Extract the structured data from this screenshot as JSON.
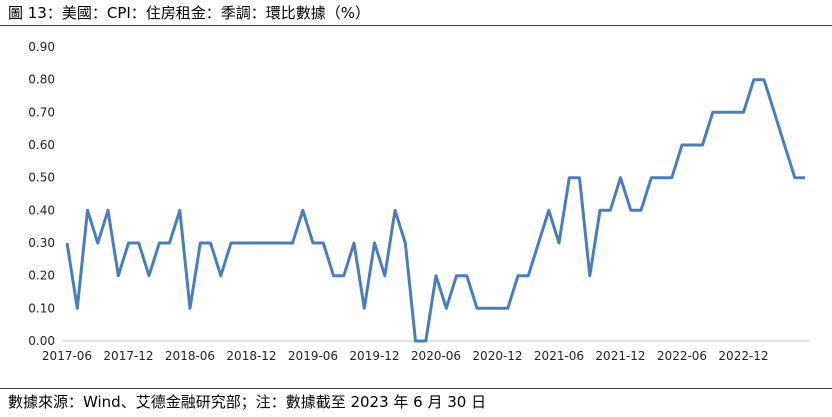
{
  "header": {
    "title": "圖 13：美國：CPI：住房租金：季調：環比數據（%）"
  },
  "footer": {
    "source": "數據來源：Wind、艾德金融研究部；注：數據截至 2023 年 6 月 30 日"
  },
  "chart_data": {
    "type": "line",
    "title": "圖 13：美國：CPI：住房租金：季調：環比數據（%）",
    "xlabel": "",
    "ylabel": "",
    "ylim": [
      0,
      0.9
    ],
    "yticks": [
      "0.00",
      "0.10",
      "0.20",
      "0.30",
      "0.40",
      "0.50",
      "0.60",
      "0.70",
      "0.80",
      "0.90"
    ],
    "x": [
      "2017-06",
      "2017-07",
      "2017-08",
      "2017-09",
      "2017-10",
      "2017-11",
      "2017-12",
      "2018-01",
      "2018-02",
      "2018-03",
      "2018-04",
      "2018-05",
      "2018-06",
      "2018-07",
      "2018-08",
      "2018-09",
      "2018-10",
      "2018-11",
      "2018-12",
      "2019-01",
      "2019-02",
      "2019-03",
      "2019-04",
      "2019-05",
      "2019-06",
      "2019-07",
      "2019-08",
      "2019-09",
      "2019-10",
      "2019-11",
      "2019-12",
      "2020-01",
      "2020-02",
      "2020-03",
      "2020-04",
      "2020-05",
      "2020-06",
      "2020-07",
      "2020-08",
      "2020-09",
      "2020-10",
      "2020-11",
      "2020-12",
      "2021-01",
      "2021-02",
      "2021-03",
      "2021-04",
      "2021-05",
      "2021-06",
      "2021-07",
      "2021-08",
      "2021-09",
      "2021-10",
      "2021-11",
      "2021-12",
      "2022-01",
      "2022-02",
      "2022-03",
      "2022-04",
      "2022-05",
      "2022-06",
      "2022-07",
      "2022-08",
      "2022-09",
      "2022-10",
      "2022-11",
      "2022-12",
      "2023-01",
      "2023-02",
      "2023-03",
      "2023-04",
      "2023-05",
      "2023-06"
    ],
    "xtick_labels": [
      "2017-06",
      "2017-12",
      "2018-06",
      "2018-12",
      "2019-06",
      "2019-12",
      "2020-06",
      "2020-12",
      "2021-06",
      "2021-12",
      "2022-06",
      "2022-12"
    ],
    "series": [
      {
        "name": "",
        "values": [
          0.3,
          0.1,
          0.4,
          0.3,
          0.4,
          0.2,
          0.3,
          0.3,
          0.2,
          0.3,
          0.3,
          0.4,
          0.1,
          0.3,
          0.3,
          0.2,
          0.3,
          0.3,
          0.3,
          0.3,
          0.3,
          0.3,
          0.3,
          0.4,
          0.3,
          0.3,
          0.2,
          0.2,
          0.3,
          0.1,
          0.3,
          0.2,
          0.4,
          0.3,
          0.0,
          0.0,
          0.2,
          0.1,
          0.2,
          0.2,
          0.1,
          0.1,
          0.1,
          0.1,
          0.2,
          0.2,
          0.3,
          0.4,
          0.3,
          0.5,
          0.5,
          0.2,
          0.4,
          0.4,
          0.5,
          0.4,
          0.4,
          0.5,
          0.5,
          0.5,
          0.6,
          0.6,
          0.6,
          0.7,
          0.7,
          0.7,
          0.7,
          0.8,
          0.8,
          0.7,
          0.6,
          0.5,
          0.5
        ]
      }
    ],
    "colors": {
      "line": "#4a7ebb",
      "axis": "#bfbfbf"
    },
    "grid": false,
    "legend": "none"
  }
}
